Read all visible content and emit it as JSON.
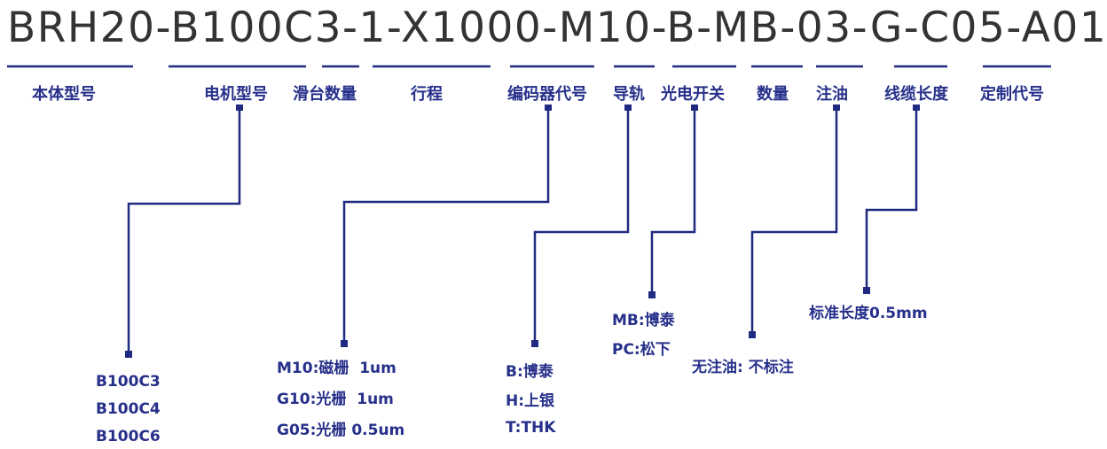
{
  "model_code": "BRH20-B100C3-1-X1000-M10-B-MB-03-G-C05-A01",
  "line_color": "#1f2a80",
  "labels": [
    "本体型号",
    "电机型号",
    "滑台数量",
    "行程",
    "编码器代号",
    "导轨",
    "光电开关",
    "数量",
    "注油",
    "线缆长度",
    "定制代号"
  ],
  "options": {
    "motor": [
      "B100C3",
      "B100C4",
      "B100C6"
    ],
    "encoder": [
      "M10:磁栅  1um",
      "G10:光栅  1um",
      "G05:光栅 0.5um"
    ],
    "rail": [
      "B:博泰",
      "H:上银",
      "T:THK"
    ],
    "sensor": [
      "MB:博泰",
      "PC:松下"
    ],
    "oil": [
      "无注油: 不标注"
    ],
    "cable": [
      "标准长度0.5mm"
    ]
  }
}
